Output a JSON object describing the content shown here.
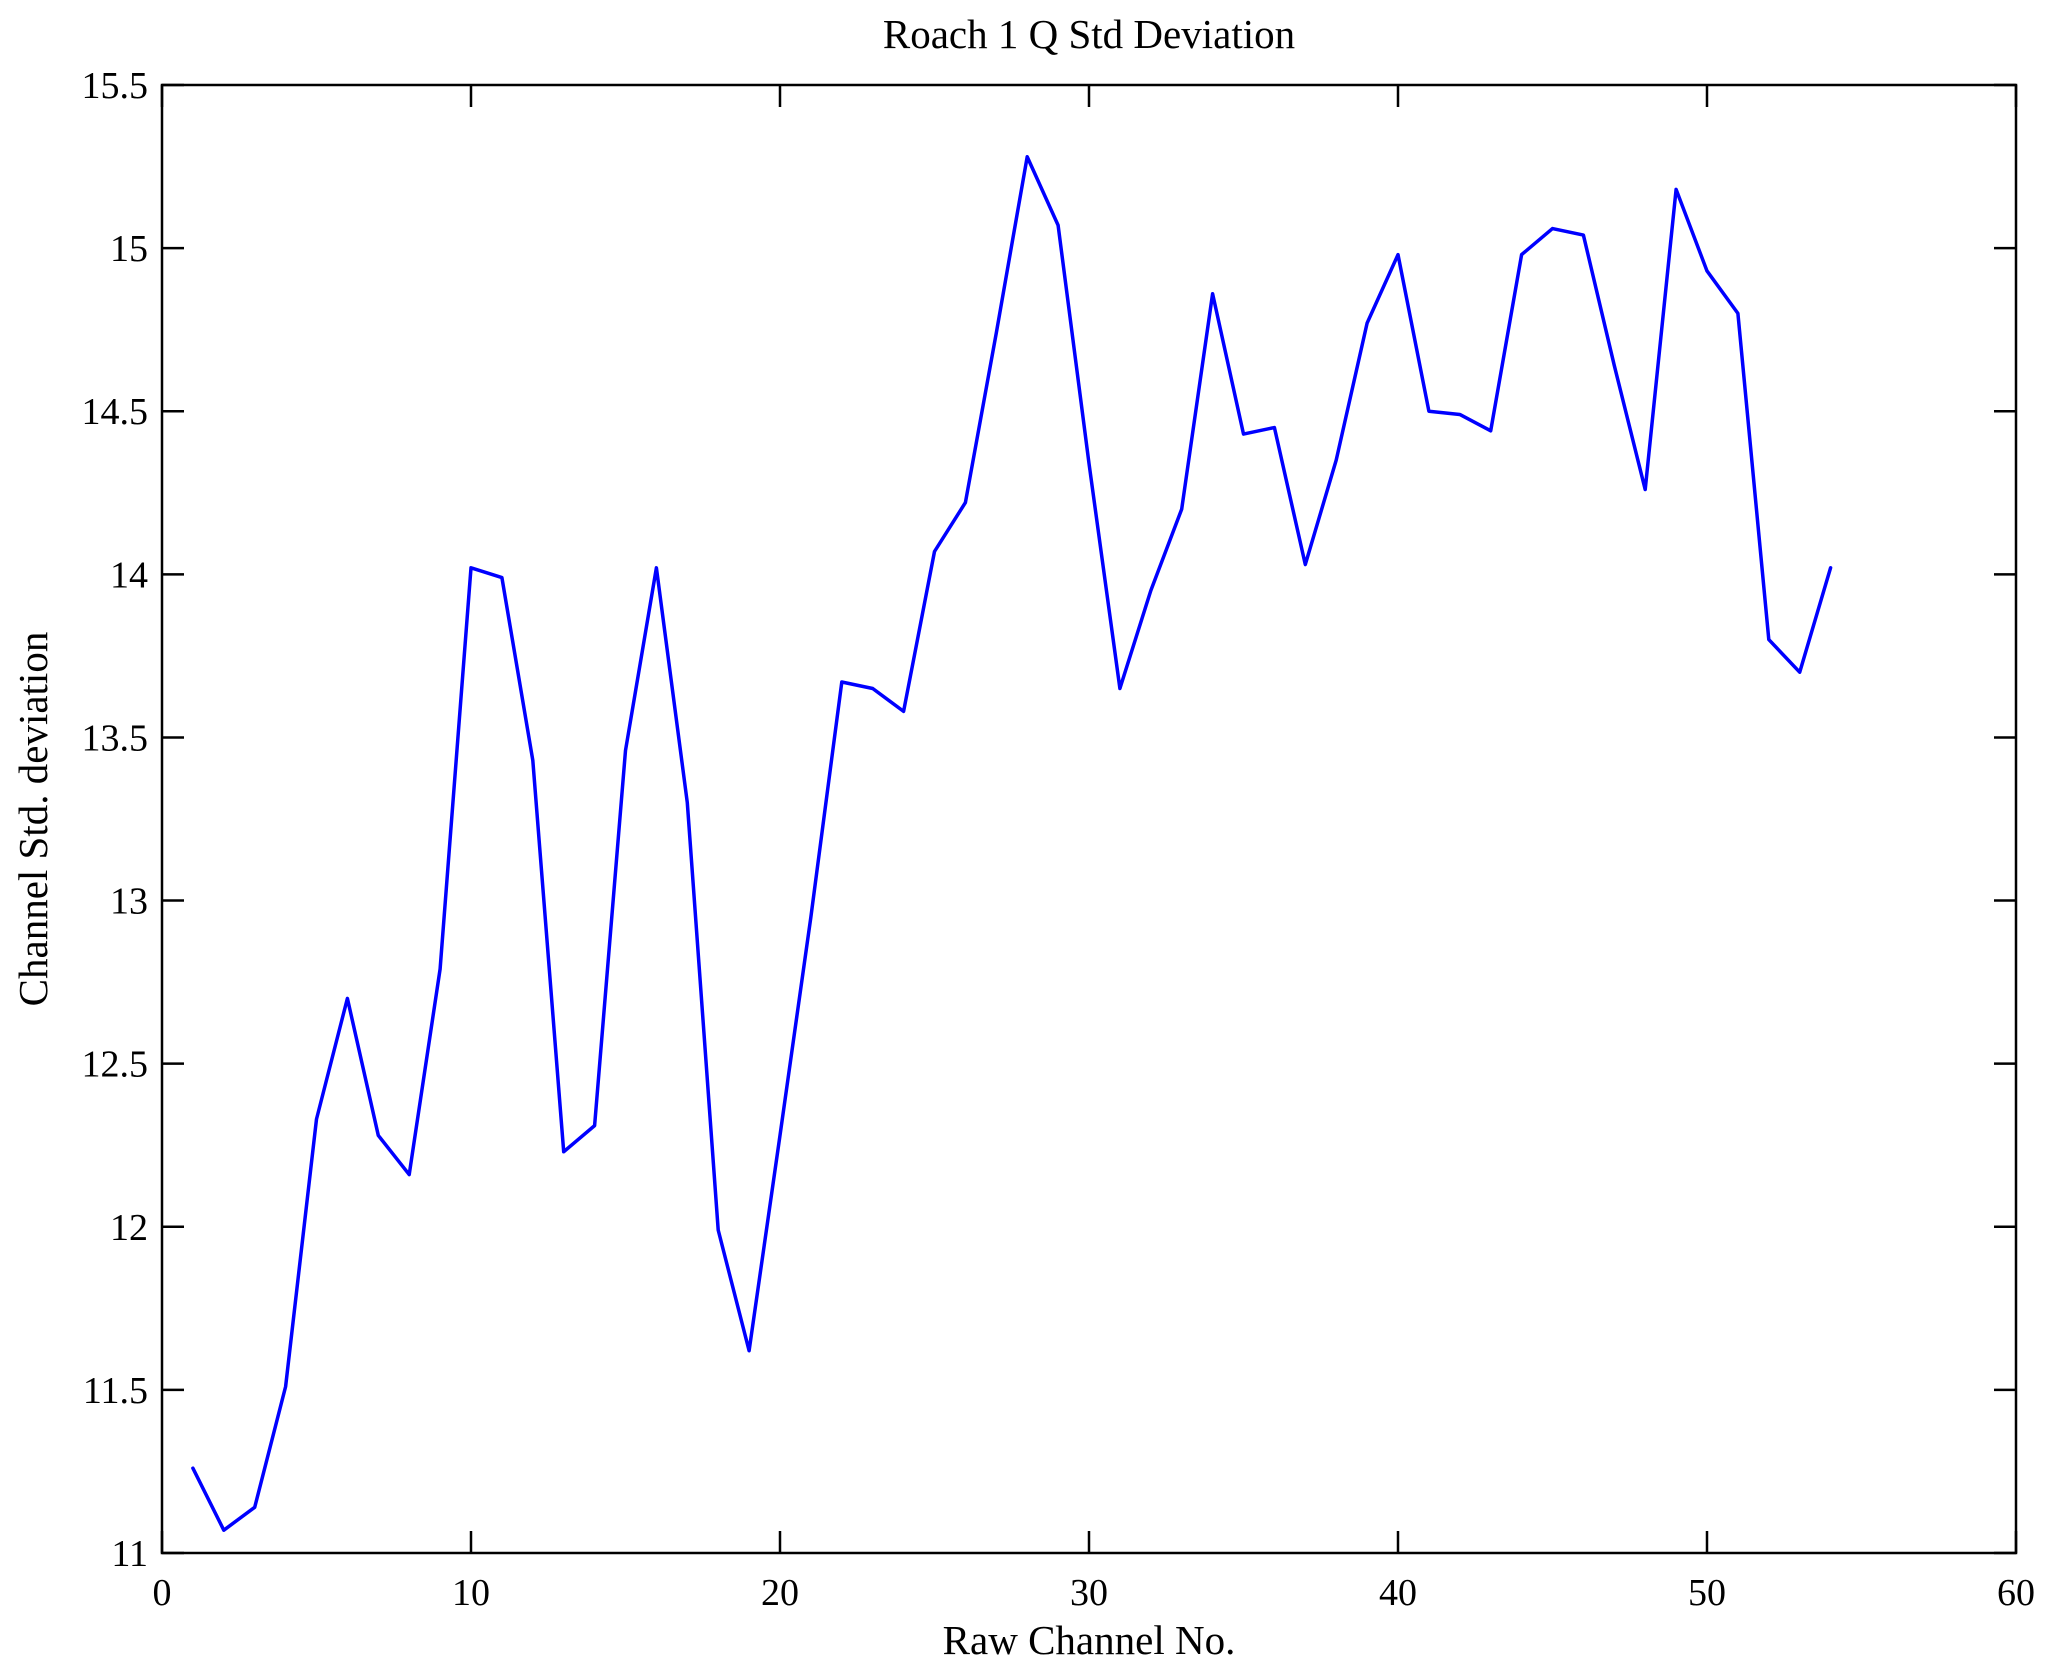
{
  "chart_data": {
    "type": "line",
    "title": "Roach 1 Q Std Deviation",
    "xlabel": "Raw Channel No.",
    "ylabel": "Channel Std. deviation",
    "xlim": [
      0,
      60
    ],
    "ylim": [
      11,
      15.5
    ],
    "x_ticks": [
      0,
      10,
      20,
      30,
      40,
      50,
      60
    ],
    "y_ticks": [
      11,
      11.5,
      12,
      12.5,
      13,
      13.5,
      14,
      14.5,
      15,
      15.5
    ],
    "grid": false,
    "legend": false,
    "box": true,
    "background_color": "#ffffff",
    "axis_color": "#000000",
    "series": [
      {
        "name": "channel-std-deviation",
        "color": "#0000ff",
        "x": [
          1,
          2,
          3,
          4,
          5,
          6,
          7,
          8,
          9,
          10,
          11,
          12,
          13,
          14,
          15,
          16,
          17,
          18,
          19,
          20,
          21,
          22,
          23,
          24,
          25,
          26,
          27,
          28,
          29,
          30,
          31,
          32,
          33,
          34,
          35,
          36,
          37,
          38,
          39,
          40,
          41,
          42,
          43,
          44,
          45,
          46,
          47,
          48,
          49,
          50,
          51,
          52,
          53,
          54
        ],
        "y": [
          11.26,
          11.07,
          11.14,
          11.51,
          12.33,
          12.7,
          12.28,
          12.16,
          12.79,
          14.02,
          13.99,
          13.43,
          12.23,
          12.31,
          13.46,
          14.02,
          13.3,
          11.99,
          11.62,
          12.28,
          12.95,
          13.67,
          13.65,
          13.58,
          14.07,
          14.22,
          14.74,
          15.28,
          15.07,
          14.34,
          13.65,
          13.95,
          14.2,
          14.86,
          14.43,
          14.45,
          14.03,
          14.35,
          14.77,
          14.98,
          14.5,
          14.49,
          14.44,
          14.98,
          15.06,
          15.04,
          14.64,
          14.26,
          15.18,
          14.93,
          14.8,
          13.8,
          13.7,
          14.02
        ]
      }
    ]
  }
}
